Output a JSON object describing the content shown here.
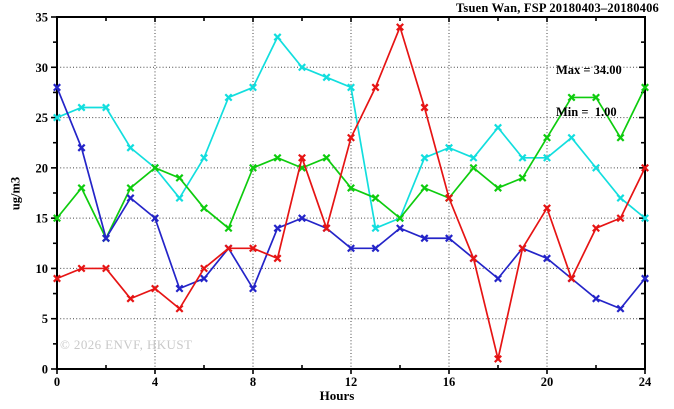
{
  "title": "Tsuen Wan, FSP 20180403–20180406",
  "annotation": {
    "max_label": "Max = 34.00",
    "min_label": "Min =  1.00"
  },
  "watermark": "© 2026 ENVF, HKUST",
  "chart_data": {
    "type": "line",
    "title": "Tsuen Wan, FSP 20180403–20180406",
    "xlabel": "Hours",
    "ylabel": "ug/m3",
    "xlim": [
      0,
      24
    ],
    "ylim": [
      0,
      35
    ],
    "x_major_ticks": [
      0,
      4,
      8,
      12,
      16,
      20,
      24
    ],
    "x_minor_ticks": [
      2,
      6,
      10,
      14,
      18,
      22
    ],
    "y_major_ticks": [
      0,
      5,
      10,
      15,
      20,
      25,
      30,
      35
    ],
    "y_minor_ticks": [
      2.5,
      7.5,
      12.5,
      17.5,
      22.5,
      27.5,
      32.5
    ],
    "grid": "dotted-at-major-ticks",
    "legend_position": "none",
    "marker": "x",
    "x": [
      0,
      1,
      2,
      3,
      4,
      5,
      6,
      7,
      8,
      9,
      10,
      11,
      12,
      13,
      14,
      15,
      16,
      17,
      18,
      19,
      20,
      21,
      22,
      23,
      24
    ],
    "series": [
      {
        "name": "cyan-series",
        "color": "#12dede",
        "values": [
          25,
          26,
          26,
          22,
          20,
          17,
          21,
          27,
          28,
          33,
          30,
          29,
          28,
          14,
          15,
          21,
          22,
          21,
          24,
          21,
          21,
          23,
          20,
          17,
          15
        ]
      },
      {
        "name": "green-series",
        "color": "#0ecc0e",
        "values": [
          15,
          18,
          13,
          18,
          20,
          19,
          16,
          14,
          20,
          21,
          20,
          21,
          18,
          17,
          15,
          18,
          17,
          20,
          18,
          19,
          23,
          27,
          27,
          23,
          28
        ]
      },
      {
        "name": "blue-series",
        "color": "#2424c8",
        "values": [
          28,
          22,
          13,
          17,
          15,
          8,
          9,
          12,
          8,
          14,
          15,
          14,
          12,
          12,
          14,
          13,
          13,
          11,
          9,
          12,
          11,
          9,
          7,
          6,
          9
        ]
      },
      {
        "name": "red-series",
        "color": "#e61414",
        "values": [
          9,
          10,
          10,
          7,
          8,
          6,
          10,
          12,
          12,
          11,
          21,
          14,
          23,
          28,
          34,
          26,
          17,
          11,
          1,
          12,
          16,
          9,
          14,
          15,
          20
        ]
      }
    ],
    "stats": {
      "max": 34.0,
      "min": 1.0
    }
  }
}
